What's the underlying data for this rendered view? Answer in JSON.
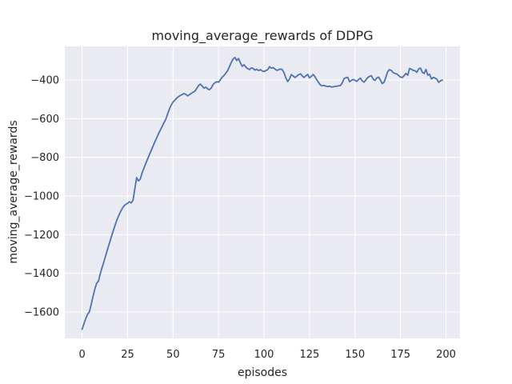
{
  "style": {
    "figure_bg": "#ffffff",
    "axes_bg": "#eaeaf2",
    "grid_color": "#ffffff",
    "text_color": "#262626",
    "line_color": "#4c72b0"
  },
  "chart_data": {
    "type": "line",
    "title": "moving_average_rewards of DDPG",
    "xlabel": "episodes",
    "ylabel": "moving_average_rewards",
    "grid": true,
    "legend_position": "none",
    "x_ticks": [
      0,
      25,
      50,
      75,
      100,
      125,
      150,
      175,
      200
    ],
    "y_ticks": [
      -400,
      -600,
      -800,
      -1000,
      -1200,
      -1400,
      -1600
    ],
    "xlim": [
      -9.5,
      207.7
    ],
    "ylim": [
      -1737,
      -226
    ],
    "series": [
      {
        "name": "moving_average_rewards",
        "color": "#4c72b0",
        "x_start": 0,
        "x_step": 1,
        "values": [
          -1690,
          -1662,
          -1635,
          -1612,
          -1600,
          -1562,
          -1520,
          -1482,
          -1452,
          -1440,
          -1402,
          -1370,
          -1340,
          -1308,
          -1276,
          -1245,
          -1214,
          -1184,
          -1155,
          -1128,
          -1104,
          -1084,
          -1066,
          -1052,
          -1043,
          -1038,
          -1030,
          -1036,
          -1022,
          -962,
          -905,
          -922,
          -912,
          -880,
          -856,
          -832,
          -809,
          -786,
          -764,
          -742,
          -720,
          -699,
          -678,
          -659,
          -640,
          -621,
          -603,
          -576,
          -550,
          -529,
          -514,
          -504,
          -494,
          -486,
          -480,
          -475,
          -470,
          -474,
          -482,
          -476,
          -469,
          -463,
          -458,
          -444,
          -429,
          -421,
          -431,
          -442,
          -437,
          -446,
          -450,
          -441,
          -423,
          -414,
          -409,
          -411,
          -399,
          -385,
          -377,
          -364,
          -351,
          -330,
          -309,
          -291,
          -283,
          -299,
          -289,
          -311,
          -329,
          -321,
          -333,
          -341,
          -346,
          -337,
          -340,
          -349,
          -344,
          -351,
          -346,
          -353,
          -356,
          -351,
          -347,
          -331,
          -339,
          -336,
          -343,
          -350,
          -347,
          -343,
          -346,
          -363,
          -390,
          -408,
          -394,
          -372,
          -379,
          -387,
          -380,
          -372,
          -368,
          -378,
          -387,
          -378,
          -371,
          -389,
          -381,
          -371,
          -383,
          -399,
          -413,
          -426,
          -430,
          -428,
          -432,
          -434,
          -432,
          -436,
          -435,
          -433,
          -432,
          -430,
          -429,
          -414,
          -393,
          -388,
          -386,
          -409,
          -402,
          -397,
          -402,
          -407,
          -397,
          -390,
          -405,
          -411,
          -399,
          -387,
          -381,
          -378,
          -396,
          -402,
          -389,
          -385,
          -401,
          -418,
          -411,
          -384,
          -356,
          -346,
          -351,
          -362,
          -366,
          -369,
          -377,
          -385,
          -387,
          -377,
          -366,
          -375,
          -340,
          -344,
          -350,
          -352,
          -360,
          -342,
          -338,
          -360,
          -366,
          -345,
          -375,
          -370,
          -395,
          -386,
          -390,
          -396,
          -412,
          -404,
          -400
        ]
      }
    ]
  }
}
